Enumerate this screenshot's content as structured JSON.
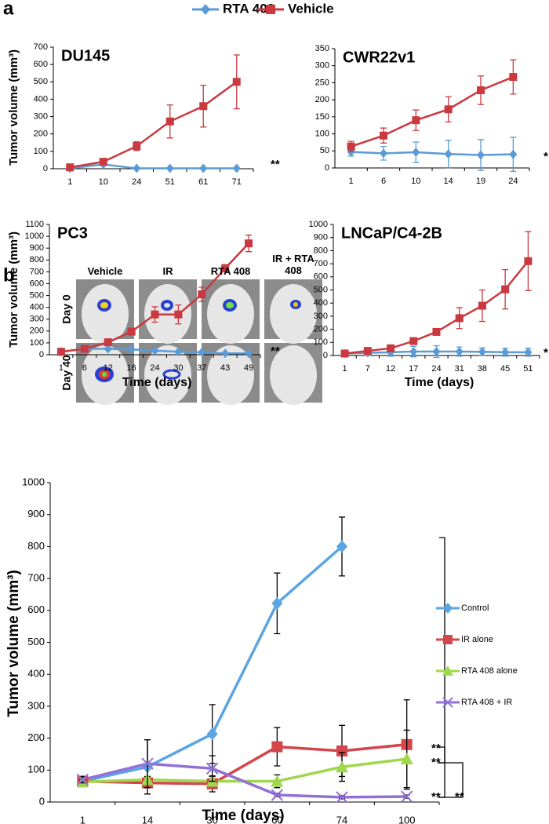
{
  "figure": {
    "panel_labels": [
      "a",
      "b"
    ],
    "image_columns": [
      "Vehicle",
      "IR",
      "RTA 408",
      "IR + RTA 408"
    ],
    "image_rows": [
      "Day 0",
      "Day 40"
    ]
  },
  "chart_data": [
    {
      "type": "line",
      "title": "DU145",
      "ylabel": "Tumor volume (mm³)",
      "categories": [
        "1",
        "10",
        "24",
        "51",
        "61",
        "71"
      ],
      "series": [
        {
          "name": "RTA 408",
          "color": "#5b9bd5",
          "marker": "diamond",
          "values": [
            2,
            25,
            2,
            2,
            2,
            2
          ],
          "errors": [
            2,
            8,
            2,
            2,
            2,
            2
          ]
        },
        {
          "name": "Vehicle",
          "color": "#c9393f",
          "marker": "square",
          "values": [
            8,
            40,
            130,
            272,
            360,
            500
          ],
          "errors": [
            5,
            10,
            25,
            95,
            120,
            155
          ]
        }
      ],
      "ylim": [
        0,
        700
      ],
      "yticks": [
        0,
        100,
        200,
        300,
        400,
        500,
        600,
        700
      ],
      "annotations": [
        "**"
      ]
    },
    {
      "type": "line",
      "title": "CWR22v1",
      "categories": [
        "1",
        "6",
        "10",
        "14",
        "19",
        "24"
      ],
      "series": [
        {
          "name": "RTA 408",
          "color": "#5b9bd5",
          "marker": "diamond",
          "values": [
            47,
            43,
            46,
            41,
            38,
            40
          ],
          "errors": [
            12,
            20,
            30,
            40,
            45,
            50
          ]
        },
        {
          "name": "Vehicle",
          "color": "#c9393f",
          "marker": "square",
          "values": [
            63,
            95,
            140,
            172,
            228,
            267
          ],
          "errors": [
            15,
            22,
            30,
            37,
            42,
            50
          ]
        }
      ],
      "ylim": [
        0,
        350
      ],
      "yticks": [
        0,
        50,
        100,
        150,
        200,
        250,
        300,
        350
      ],
      "annotations": [
        "*"
      ]
    },
    {
      "type": "line",
      "title": "PC3",
      "ylabel": "Tumor volume (mm³)",
      "xlabel": "Time (days)",
      "categories": [
        "1",
        "6",
        "12",
        "16",
        "24",
        "30",
        "37",
        "43",
        "49"
      ],
      "series": [
        {
          "name": "RTA 408",
          "color": "#5b9bd5",
          "marker": "diamond",
          "values": [
            25,
            50,
            50,
            45,
            35,
            25,
            20,
            12,
            12
          ],
          "errors": [
            5,
            8,
            8,
            8,
            8,
            8,
            8,
            5,
            5
          ]
        },
        {
          "name": "Vehicle",
          "color": "#c9393f",
          "marker": "square",
          "values": [
            25,
            50,
            105,
            195,
            340,
            340,
            510,
            730,
            940
          ],
          "errors": [
            5,
            10,
            15,
            15,
            65,
            80,
            60,
            30,
            70
          ]
        }
      ],
      "ylim": [
        0,
        1100
      ],
      "yticks": [
        0,
        100,
        200,
        300,
        400,
        500,
        600,
        700,
        800,
        900,
        1000,
        1100
      ],
      "annotations": [
        "**"
      ]
    },
    {
      "type": "line",
      "title": "LNCaP/C4-2B",
      "xlabel": "Time (days)",
      "categories": [
        "1",
        "7",
        "12",
        "17",
        "24",
        "31",
        "38",
        "45",
        "51"
      ],
      "series": [
        {
          "name": "RTA 408",
          "color": "#5b9bd5",
          "marker": "diamond",
          "values": [
            15,
            20,
            25,
            30,
            30,
            30,
            28,
            25,
            25
          ],
          "errors": [
            10,
            20,
            30,
            40,
            45,
            35,
            30,
            30,
            30
          ]
        },
        {
          "name": "Vehicle",
          "color": "#c9393f",
          "marker": "square",
          "values": [
            15,
            35,
            55,
            110,
            180,
            285,
            380,
            505,
            720
          ],
          "errors": [
            5,
            10,
            15,
            20,
            20,
            80,
            120,
            150,
            225
          ]
        }
      ],
      "ylim": [
        0,
        1000
      ],
      "yticks": [
        0,
        100,
        200,
        300,
        400,
        500,
        600,
        700,
        800,
        900,
        1000
      ],
      "annotations": [
        "*"
      ]
    },
    {
      "type": "line",
      "ylabel": "Tumor volume (mm³)",
      "xlabel": "Time (days)",
      "categories": [
        "1",
        "14",
        "30",
        "60",
        "74",
        "100"
      ],
      "series": [
        {
          "name": "Control",
          "color": "#5aa5e2",
          "marker": "diamond",
          "values": [
            65,
            110,
            213,
            622,
            800,
            null
          ],
          "errors": [
            10,
            85,
            92,
            95,
            92,
            null
          ]
        },
        {
          "name": "IR alone",
          "color": "#d2464c",
          "marker": "square",
          "values": [
            65,
            60,
            57,
            173,
            160,
            180
          ],
          "errors": [
            10,
            15,
            25,
            60,
            80,
            140
          ]
        },
        {
          "name": "RTA 408 alone",
          "color": "#9fd84c",
          "marker": "triangle",
          "values": [
            63,
            70,
            65,
            65,
            110,
            135
          ],
          "errors": [
            5,
            10,
            15,
            20,
            45,
            90
          ]
        },
        {
          "name": "RTA 408 + IR",
          "color": "#9370d6",
          "marker": "x",
          "values": [
            70,
            120,
            105,
            22,
            15,
            17
          ],
          "errors": [
            10,
            75,
            40,
            5,
            5,
            5
          ]
        }
      ],
      "ylim": [
        0,
        1000
      ],
      "yticks": [
        0,
        100,
        200,
        300,
        400,
        500,
        600,
        700,
        800,
        900,
        1000
      ],
      "annotations": [
        "**",
        "**",
        "**",
        "**"
      ],
      "legend": "right"
    }
  ]
}
